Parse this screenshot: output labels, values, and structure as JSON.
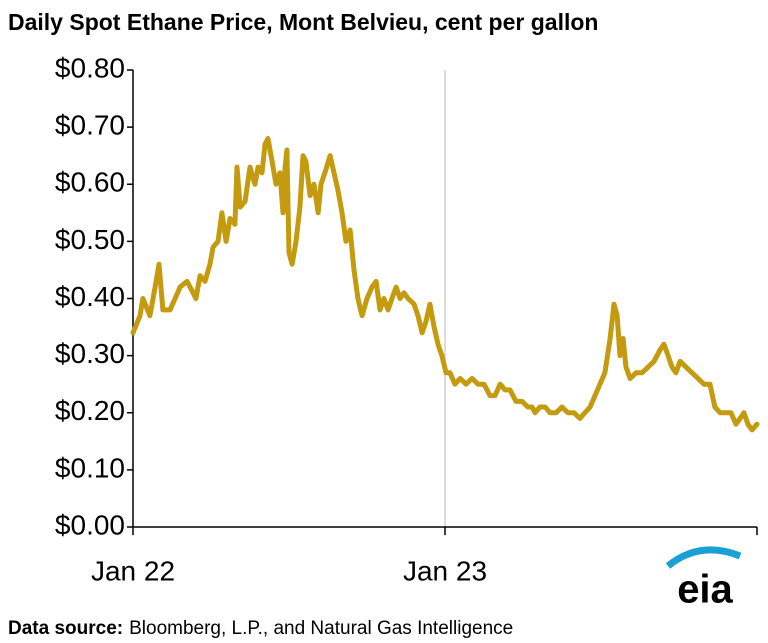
{
  "chart_data": {
    "type": "line",
    "title": "Daily Spot Ethane Price, Mont Belvieu, cent per gallon",
    "x": [
      0,
      0.27,
      0.38,
      0.65,
      0.85,
      1.0,
      1.15,
      1.42,
      1.62,
      1.81,
      2.08,
      2.31,
      2.42,
      2.58,
      2.77,
      2.96,
      3.08,
      3.27,
      3.42,
      3.58,
      3.73,
      3.92,
      4.0,
      4.12,
      4.31,
      4.5,
      4.69,
      4.81,
      4.96,
      5.08,
      5.19,
      5.35,
      5.5,
      5.65,
      5.77,
      5.85,
      5.92,
      6.0,
      6.12,
      6.27,
      6.42,
      6.54,
      6.65,
      6.81,
      6.96,
      7.12,
      7.23,
      7.38,
      7.58,
      7.73,
      7.88,
      8.04,
      8.19,
      8.35,
      8.5,
      8.65,
      8.81,
      9.0,
      9.19,
      9.35,
      9.5,
      9.65,
      9.81,
      9.96,
      10.12,
      10.27,
      10.42,
      10.58,
      10.81,
      10.96,
      11.12,
      11.27,
      11.42,
      11.58,
      11.73,
      11.88,
      12.04,
      12.19,
      12.38,
      12.58,
      12.81,
      13.04,
      13.27,
      13.5,
      13.73,
      13.92,
      14.12,
      14.31,
      14.5,
      14.73,
      14.96,
      15.19,
      15.35,
      15.46,
      15.65,
      15.85,
      16.04,
      16.27,
      16.5,
      16.73,
      16.96,
      17.19,
      17.38,
      17.58,
      17.77,
      17.96,
      18.15,
      18.35,
      18.5,
      18.62,
      18.73,
      18.85,
      18.96,
      19.12,
      19.35,
      19.58,
      19.81,
      20.04,
      20.27,
      20.42,
      20.58,
      20.73,
      20.88,
      21.04,
      21.27,
      21.5,
      21.73,
      21.96,
      22.19,
      22.38,
      22.58,
      22.81,
      23.0,
      23.19,
      23.35,
      23.5,
      23.65,
      23.81,
      24.0
    ],
    "series": [
      {
        "name": "Ethane",
        "color": "#c49a0f",
        "values": [
          0.34,
          0.37,
          0.4,
          0.37,
          0.42,
          0.46,
          0.38,
          0.38,
          0.4,
          0.42,
          0.43,
          0.41,
          0.4,
          0.44,
          0.43,
          0.46,
          0.49,
          0.5,
          0.55,
          0.5,
          0.54,
          0.53,
          0.63,
          0.56,
          0.57,
          0.63,
          0.6,
          0.63,
          0.62,
          0.67,
          0.68,
          0.64,
          0.6,
          0.62,
          0.55,
          0.63,
          0.66,
          0.48,
          0.46,
          0.5,
          0.56,
          0.65,
          0.64,
          0.58,
          0.6,
          0.55,
          0.6,
          0.62,
          0.65,
          0.62,
          0.59,
          0.55,
          0.5,
          0.52,
          0.45,
          0.4,
          0.37,
          0.4,
          0.42,
          0.43,
          0.38,
          0.4,
          0.38,
          0.4,
          0.42,
          0.4,
          0.41,
          0.4,
          0.39,
          0.37,
          0.34,
          0.36,
          0.39,
          0.35,
          0.32,
          0.3,
          0.27,
          0.27,
          0.25,
          0.26,
          0.25,
          0.26,
          0.25,
          0.25,
          0.23,
          0.23,
          0.25,
          0.24,
          0.24,
          0.22,
          0.22,
          0.21,
          0.21,
          0.2,
          0.21,
          0.21,
          0.2,
          0.2,
          0.21,
          0.2,
          0.2,
          0.19,
          0.2,
          0.21,
          0.23,
          0.25,
          0.27,
          0.33,
          0.39,
          0.37,
          0.3,
          0.33,
          0.28,
          0.26,
          0.27,
          0.27,
          0.28,
          0.29,
          0.31,
          0.32,
          0.3,
          0.28,
          0.27,
          0.29,
          0.28,
          0.27,
          0.26,
          0.25,
          0.25,
          0.21,
          0.2,
          0.2,
          0.2,
          0.18,
          0.19,
          0.2,
          0.18,
          0.17,
          0.18
        ]
      }
    ],
    "xlim": [
      0,
      24
    ],
    "xticks": [
      {
        "value": 0,
        "label": "Jan 22"
      },
      {
        "value": 12,
        "label": "Jan 23"
      }
    ],
    "ylim": [
      0,
      0.8
    ],
    "yticks": [
      {
        "value": 0,
        "label": "$0.00"
      },
      {
        "value": 0.1,
        "label": "$0.10"
      },
      {
        "value": 0.2,
        "label": "$0.20"
      },
      {
        "value": 0.3,
        "label": "$0.30"
      },
      {
        "value": 0.4,
        "label": "$0.40"
      },
      {
        "value": 0.5,
        "label": "$0.50"
      },
      {
        "value": 0.6,
        "label": "$0.60"
      },
      {
        "value": 0.7,
        "label": "$0.70"
      },
      {
        "value": 0.8,
        "label": "$0.80"
      }
    ],
    "grid": "x"
  },
  "logo": "eia",
  "footer": {
    "label": "Data source:",
    "text": "Bloomberg, L.P., and Natural Gas Intelligence"
  }
}
